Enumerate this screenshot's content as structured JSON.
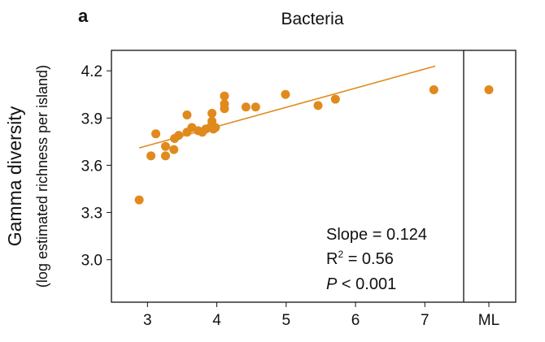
{
  "chart_data": {
    "type": "scatter",
    "panel_label": "a",
    "title": "Bacteria",
    "ylabel": "Gamma diversity",
    "ylabel_sub": "(log estimated richness per island)",
    "xlabel": "",
    "xlim": [
      2.48,
      7.56
    ],
    "ylim": [
      2.73,
      4.33
    ],
    "xticks": [
      3,
      4,
      5,
      6,
      7
    ],
    "xtick_labels": [
      "3",
      "4",
      "5",
      "6",
      "7"
    ],
    "yticks": [
      3.0,
      3.3,
      3.6,
      3.9,
      4.2
    ],
    "ytick_labels": [
      "3.0",
      "3.3",
      "3.6",
      "3.9",
      "4.2"
    ],
    "ml_label": "ML",
    "ml_value": 4.08,
    "color": "#e08a1e",
    "points": [
      [
        2.88,
        3.38
      ],
      [
        3.05,
        3.66
      ],
      [
        3.12,
        3.8
      ],
      [
        3.26,
        3.72
      ],
      [
        3.26,
        3.66
      ],
      [
        3.38,
        3.7
      ],
      [
        3.39,
        3.77
      ],
      [
        3.45,
        3.79
      ],
      [
        3.57,
        3.92
      ],
      [
        3.57,
        3.81
      ],
      [
        3.64,
        3.84
      ],
      [
        3.73,
        3.82
      ],
      [
        3.79,
        3.81
      ],
      [
        3.84,
        3.83
      ],
      [
        3.9,
        3.84
      ],
      [
        3.95,
        3.83
      ],
      [
        3.93,
        3.93
      ],
      [
        3.98,
        3.84
      ],
      [
        3.93,
        3.88
      ],
      [
        4.11,
        4.04
      ],
      [
        4.11,
        3.99
      ],
      [
        4.11,
        3.96
      ],
      [
        4.42,
        3.97
      ],
      [
        4.56,
        3.97
      ],
      [
        4.99,
        4.05
      ],
      [
        5.46,
        3.98
      ],
      [
        5.71,
        4.02
      ],
      [
        7.13,
        4.08
      ]
    ],
    "fit": {
      "x": [
        2.88,
        7.15
      ],
      "y": [
        3.71,
        4.23
      ]
    },
    "annotation": {
      "slope": "Slope = 0.124",
      "r2_prefix": "R",
      "r2_sup": "2",
      "r2_rest": " = 0.56",
      "p_italic": "P",
      "p_rest": " < 0.001"
    }
  }
}
